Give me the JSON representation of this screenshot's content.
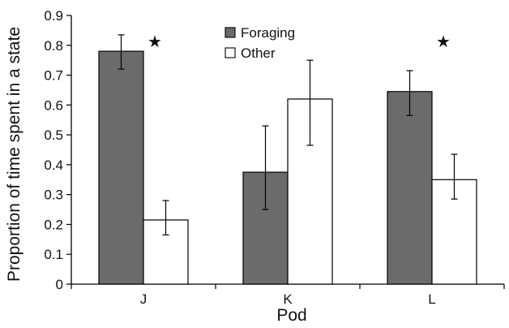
{
  "chart_data": {
    "type": "bar",
    "xlabel": "Pod",
    "ylabel": "Proportion of time spent in a state",
    "categories": [
      "J",
      "K",
      "L"
    ],
    "ylim": [
      0,
      0.9
    ],
    "yticks": [
      "0",
      "0.1",
      "0.2",
      "0.3",
      "0.4",
      "0.5",
      "0.6",
      "0.7",
      "0.8",
      "0.9"
    ],
    "series": [
      {
        "name": "Foraging",
        "color": "#6b6b6b",
        "values": [
          0.78,
          0.375,
          0.645
        ],
        "error_low": [
          0.72,
          0.25,
          0.565
        ],
        "error_high": [
          0.835,
          0.53,
          0.715
        ]
      },
      {
        "name": "Other",
        "color": "#ffffff",
        "values": [
          0.215,
          0.62,
          0.35
        ],
        "error_low": [
          0.165,
          0.465,
          0.285
        ],
        "error_high": [
          0.28,
          0.75,
          0.435
        ]
      }
    ],
    "significance_markers": [
      {
        "category": "J",
        "symbol": "★"
      },
      {
        "category": "L",
        "symbol": "★"
      }
    ],
    "legend_position": "top-center",
    "grid": false
  }
}
